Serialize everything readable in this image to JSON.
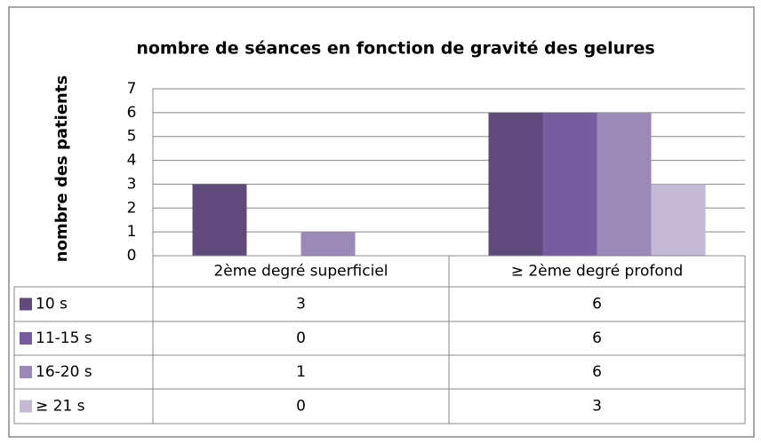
{
  "chart_data": {
    "type": "bar",
    "title": "nombre de séances en fonction de gravité des gelures",
    "y_label": "nombre  des patients",
    "categories": [
      "2ème degré superficiel",
      "≥ 2ème degré profond"
    ],
    "series": [
      {
        "name": "10 s",
        "color": "#604a7b",
        "values": [
          3,
          6
        ]
      },
      {
        "name": "11-15 s",
        "color": "#775ca0",
        "values": [
          0,
          6
        ]
      },
      {
        "name": "16-20 s",
        "color": "#9b8ab8",
        "values": [
          1,
          6
        ]
      },
      {
        "name": "≥ 21 s",
        "color": "#c4bad6",
        "values": [
          0,
          3
        ]
      }
    ],
    "ylim": [
      0,
      7
    ],
    "yticks": [
      0,
      1,
      2,
      3,
      4,
      5,
      6,
      7
    ],
    "grid": true
  }
}
